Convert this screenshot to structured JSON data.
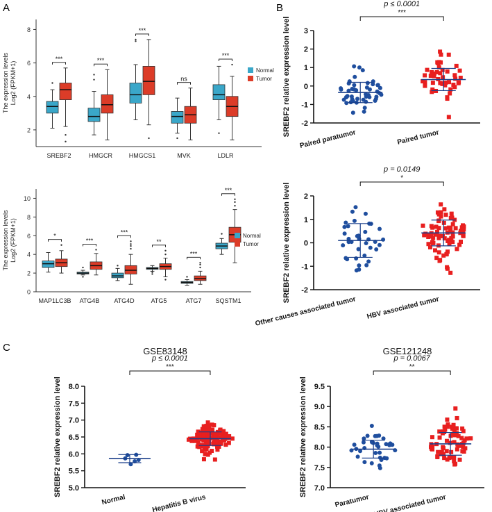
{
  "panel_labels": {
    "a": "A",
    "b": "B",
    "c": "C"
  },
  "colors": {
    "normal": "#3aa7c9",
    "tumor": "#dc3c28",
    "blue_dot": "#1f4e9e",
    "red_sq": "#e81f1f",
    "axis": "#333333"
  },
  "chart_data": [
    {
      "id": "A1",
      "type": "box",
      "title": "",
      "ylabel_line1": "The expression levels",
      "ylabel_line2": "Log2 (FPKM+1)",
      "ylim": [
        1,
        8.6
      ],
      "yticks": [
        2,
        4,
        6,
        8
      ],
      "categories": [
        "SREBF2",
        "HMGCR",
        "HMGCS1",
        "MVK",
        "LDLR"
      ],
      "legend": [
        "Normal",
        "Tumor"
      ],
      "significance": [
        "***",
        "***",
        "***",
        "ns",
        "***"
      ],
      "series": [
        {
          "name": "Normal",
          "boxes": [
            {
              "min": 2.1,
              "q1": 3.0,
              "median": 3.4,
              "q3": 3.7,
              "max": 4.4,
              "outliers": [
                4.8
              ]
            },
            {
              "min": 1.7,
              "q1": 2.5,
              "median": 2.8,
              "q3": 3.3,
              "max": 4.3,
              "outliers": [
                5.0,
                5.3
              ]
            },
            {
              "min": 2.6,
              "q1": 3.6,
              "median": 4.1,
              "q3": 4.8,
              "max": 5.9,
              "outliers": [
                7.3,
                7.4
              ]
            },
            {
              "min": 1.8,
              "q1": 2.4,
              "median": 2.8,
              "q3": 3.1,
              "max": 3.9,
              "outliers": [
                1.5
              ]
            },
            {
              "min": 2.6,
              "q1": 3.8,
              "median": 4.1,
              "q3": 4.7,
              "max": 5.8,
              "outliers": [
                1.8
              ]
            }
          ]
        },
        {
          "name": "Tumor",
          "boxes": [
            {
              "min": 2.2,
              "q1": 3.8,
              "median": 4.4,
              "q3": 4.8,
              "max": 5.7,
              "outliers": [
                1.3,
                1.7
              ]
            },
            {
              "min": 1.4,
              "q1": 3.0,
              "median": 3.5,
              "q3": 4.1,
              "max": 5.6,
              "outliers": []
            },
            {
              "min": 2.3,
              "q1": 4.1,
              "median": 4.9,
              "q3": 5.8,
              "max": 7.4,
              "outliers": [
                1.5
              ]
            },
            {
              "min": 1.4,
              "q1": 2.4,
              "median": 2.9,
              "q3": 3.4,
              "max": 4.5,
              "outliers": []
            },
            {
              "min": 1.4,
              "q1": 2.8,
              "median": 3.4,
              "q3": 4.0,
              "max": 5.2,
              "outliers": [
                5.9
              ]
            }
          ]
        }
      ]
    },
    {
      "id": "A2",
      "type": "box",
      "title": "",
      "ylabel_line1": "The expression levels",
      "ylabel_line2": "Log2 (FPKM+1)",
      "ylim": [
        0,
        11
      ],
      "yticks": [
        0,
        2,
        4,
        6,
        8,
        10
      ],
      "categories": [
        "MAP1LC3B",
        "ATG4B",
        "ATG4D",
        "ATG5",
        "ATG7",
        "SQSTM1"
      ],
      "legend": [
        "Normal",
        "Tumor"
      ],
      "significance": [
        "*",
        "***",
        "***",
        "**",
        "***",
        "***"
      ],
      "series": [
        {
          "name": "Normal",
          "boxes": [
            {
              "min": 2.1,
              "q1": 2.6,
              "median": 3.0,
              "q3": 3.3,
              "max": 4.2,
              "outliers": []
            },
            {
              "min": 1.8,
              "q1": 1.9,
              "median": 2.0,
              "q3": 2.1,
              "max": 2.3,
              "outliers": [
                2.6,
                1.6
              ]
            },
            {
              "min": 1.2,
              "q1": 1.5,
              "median": 1.7,
              "q3": 2.0,
              "max": 2.5,
              "outliers": [
                2.8
              ]
            },
            {
              "min": 2.2,
              "q1": 2.4,
              "median": 2.5,
              "q3": 2.6,
              "max": 2.8,
              "outliers": [
                2.1,
                1.9
              ]
            },
            {
              "min": 0.7,
              "q1": 0.9,
              "median": 1.0,
              "q3": 1.1,
              "max": 1.3,
              "outliers": [
                1.6
              ]
            },
            {
              "min": 4.0,
              "q1": 4.6,
              "median": 4.9,
              "q3": 5.2,
              "max": 5.7,
              "outliers": [
                6.2
              ]
            }
          ]
        },
        {
          "name": "Tumor",
          "boxes": [
            {
              "min": 2.0,
              "q1": 2.7,
              "median": 3.1,
              "q3": 3.5,
              "max": 4.4,
              "outliers": [
                5.0
              ]
            },
            {
              "min": 1.8,
              "q1": 2.4,
              "median": 2.8,
              "q3": 3.2,
              "max": 4.1,
              "outliers": [
                4.5
              ]
            },
            {
              "min": 0.8,
              "q1": 1.9,
              "median": 2.3,
              "q3": 2.8,
              "max": 4.0,
              "outliers": [
                4.6,
                4.9,
                5.1,
                5.4
              ]
            },
            {
              "min": 1.6,
              "q1": 2.4,
              "median": 2.7,
              "q3": 3.0,
              "max": 3.6,
              "outliers": [
                4.0,
                4.4,
                1.3
              ]
            },
            {
              "min": 0.8,
              "q1": 1.2,
              "median": 1.4,
              "q3": 1.7,
              "max": 2.2,
              "outliers": [
                2.6,
                2.9,
                3.1
              ]
            },
            {
              "min": 3.1,
              "q1": 5.3,
              "median": 6.1,
              "q3": 6.9,
              "max": 8.8,
              "outliers": [
                9.2,
                9.6,
                9.9
              ]
            }
          ]
        }
      ]
    },
    {
      "id": "B1",
      "type": "scatter",
      "ylabel": "SREBF2 relative expression level",
      "ylim": [
        -2,
        3
      ],
      "yticks": [
        -2,
        -1,
        0,
        1,
        2,
        3
      ],
      "categories": [
        "Paired paratumor",
        "Paired tumor"
      ],
      "pvalue": "p ≤ 0.0001",
      "significance": "***",
      "groups": [
        {
          "name": "Paired paratumor",
          "marker": "circle",
          "mean": -0.35,
          "sd": 0.55,
          "n": 48
        },
        {
          "name": "Paired tumor",
          "marker": "square",
          "mean": 0.35,
          "sd": 0.6,
          "n": 48
        }
      ]
    },
    {
      "id": "B2",
      "type": "scatter",
      "ylabel": "SREBF2 relative expression level",
      "ylim": [
        -2,
        2
      ],
      "yticks": [
        -2,
        -1,
        0,
        1,
        2
      ],
      "categories": [
        "Other causes associated tumor",
        "HBV associated tumor"
      ],
      "pvalue": "p = 0.0149",
      "significance": "*",
      "groups": [
        {
          "name": "Other causes associated tumor",
          "marker": "circle",
          "mean": 0.1,
          "sd": 0.72,
          "n": 36
        },
        {
          "name": "HBV associated tumor",
          "marker": "square",
          "mean": 0.42,
          "sd": 0.55,
          "n": 80
        }
      ]
    },
    {
      "id": "C1",
      "type": "scatter",
      "title": "GSE83148",
      "ylabel": "SREBF2 relative expression level",
      "ylim": [
        5.0,
        8.0
      ],
      "yticks": [
        5.0,
        5.5,
        6.0,
        6.5,
        7.0,
        7.5,
        8.0
      ],
      "categories": [
        "Normal",
        "Hepatitis B virus"
      ],
      "pvalue": "p ≤ 0.0001",
      "significance": "***",
      "groups": [
        {
          "name": "Normal",
          "marker": "circle",
          "mean": 5.86,
          "sd": 0.12,
          "n": 6
        },
        {
          "name": "Hepatitis B virus",
          "marker": "square",
          "mean": 6.45,
          "sd": 0.2,
          "n": 120
        }
      ]
    },
    {
      "id": "C2",
      "type": "scatter",
      "title": "GSE121248",
      "ylabel": "SREBF2 relative expression level",
      "ylim": [
        7.0,
        9.5
      ],
      "yticks": [
        7.0,
        7.5,
        8.0,
        8.5,
        9.0,
        9.5
      ],
      "categories": [
        "Paratumor",
        "HBV associated tumor"
      ],
      "pvalue": "p = 0.0067",
      "significance": "**",
      "groups": [
        {
          "name": "Paratumor",
          "marker": "circle",
          "mean": 7.95,
          "sd": 0.22,
          "n": 37
        },
        {
          "name": "HBV associated tumor",
          "marker": "square",
          "mean": 8.08,
          "sd": 0.28,
          "n": 70
        }
      ]
    }
  ]
}
